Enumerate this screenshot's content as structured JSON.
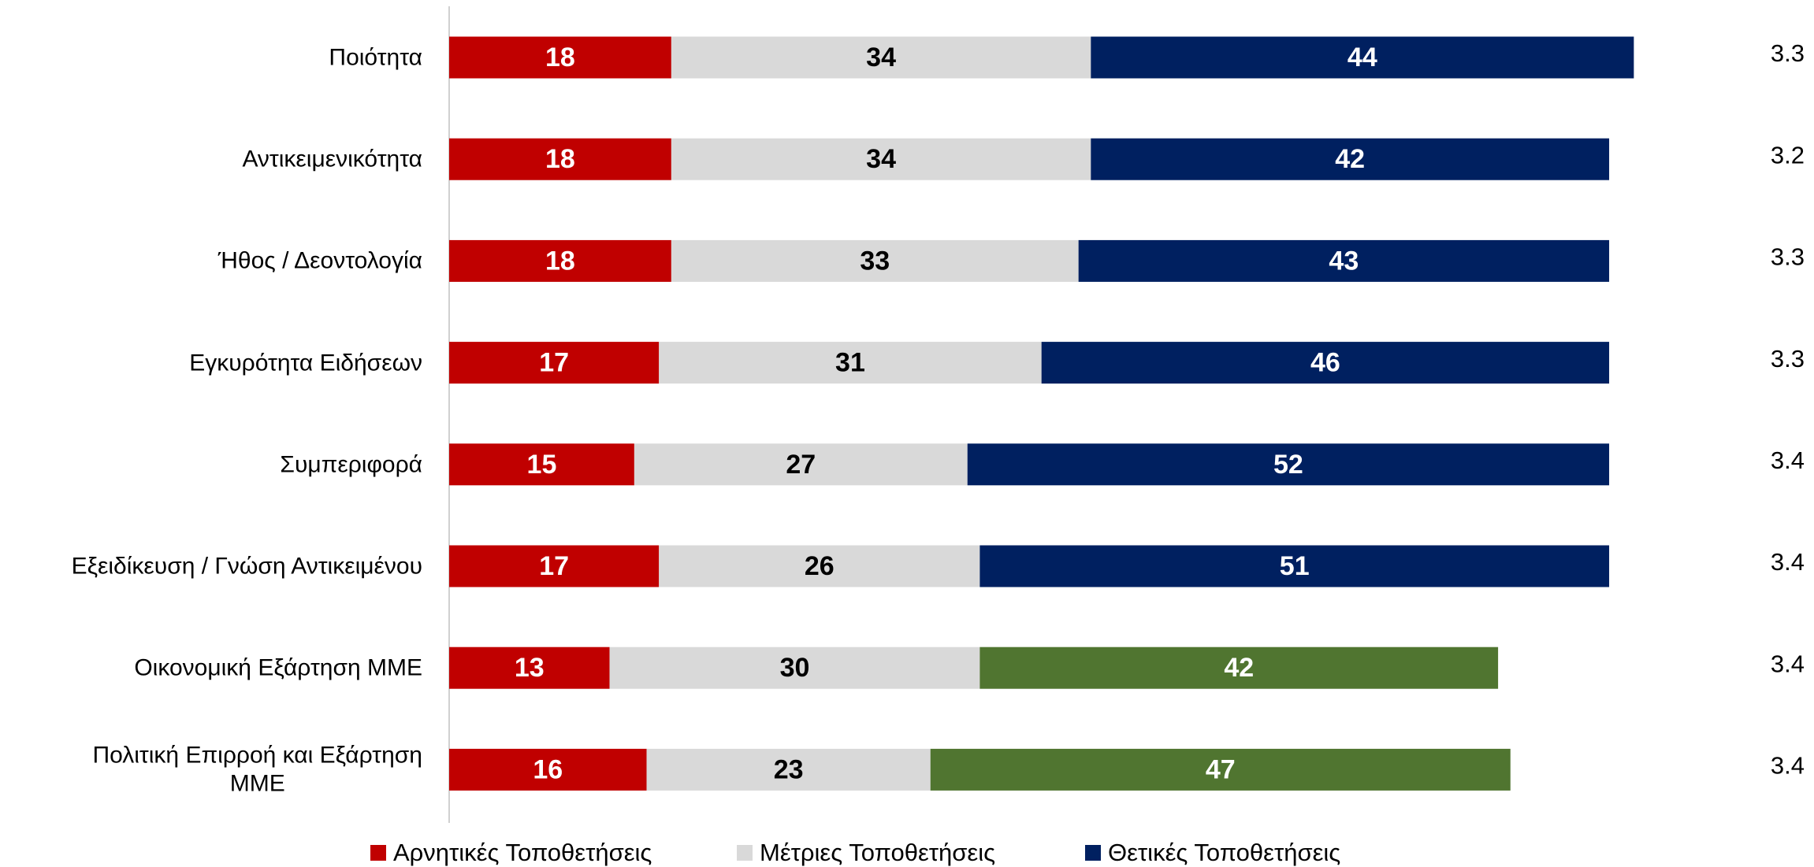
{
  "chart_data": {
    "type": "stacked_barh",
    "categories": [
      "Ποιότητα",
      "Αντικειμενικότητα",
      "Ήθος / Δεοντολογία",
      "Εγκυρότητα Ειδήσεων",
      "Συμπεριφορά",
      "Εξειδίκευση / Γνώση Αντικειμένου",
      "Οικονομική Εξάρτηση ΜΜΕ",
      "Πολιτική Επιρροή και Εξάρτηση\nΜΜΕ"
    ],
    "series": [
      {
        "name": "Αρνητικές Τοποθετήσεις",
        "color": "#c00000",
        "label_color": "#ffffff",
        "values": [
          18,
          18,
          18,
          17,
          15,
          17,
          13,
          16
        ]
      },
      {
        "name": "Μέτριες Τοποθετήσεις",
        "color": "#d9d9d9",
        "label_color": "#000000",
        "values": [
          34,
          34,
          33,
          31,
          27,
          26,
          30,
          23
        ]
      },
      {
        "name": "Θετικές Τοποθετήσεις",
        "color": "#002060",
        "label_color": "#ffffff",
        "values": [
          44,
          42,
          43,
          46,
          52,
          51,
          42,
          47
        ],
        "point_colors": [
          "#002060",
          "#002060",
          "#002060",
          "#002060",
          "#002060",
          "#002060",
          "#507530",
          "#507530"
        ]
      }
    ],
    "side_values": [
      3.3,
      3.2,
      3.3,
      3.3,
      3.4,
      3.4,
      3.4,
      3.4
    ],
    "xlim": [
      0,
      100
    ],
    "legend": "bottom"
  }
}
